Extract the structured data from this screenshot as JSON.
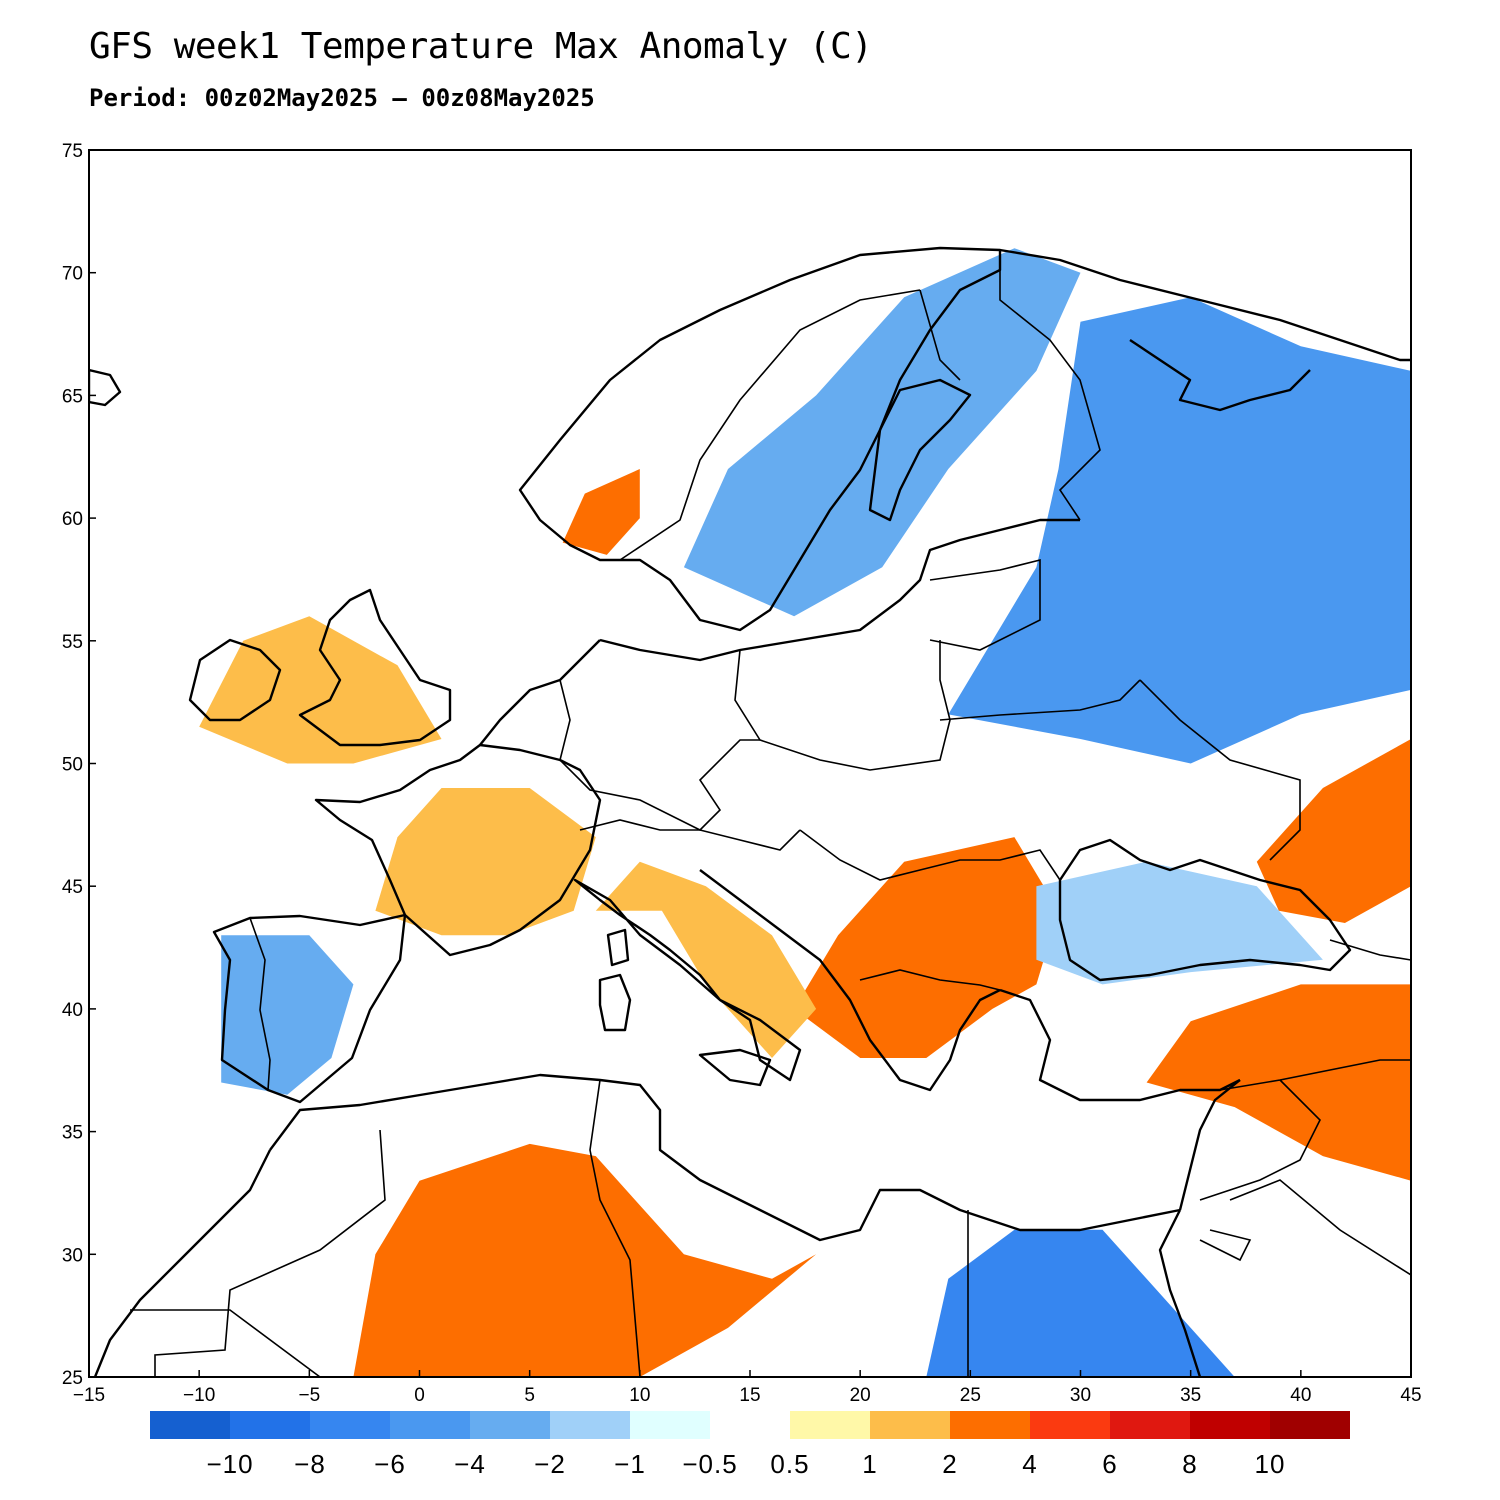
{
  "title": "GFS week1 Temperature Max Anomaly (C)",
  "subtitle": "Period: 00z02May2025 – 00z08May2025",
  "map": {
    "lon_range": [
      -15,
      45
    ],
    "lat_range": [
      25,
      75
    ],
    "lon_ticks": [
      -15,
      -10,
      -5,
      0,
      5,
      10,
      15,
      20,
      25,
      30,
      35,
      40,
      45
    ],
    "lat_ticks": [
      25,
      30,
      35,
      40,
      45,
      50,
      55,
      60,
      65,
      70,
      75
    ],
    "lon_tick_labels": [
      "−15",
      "−10",
      "−5",
      "0",
      "5",
      "10",
      "15",
      "20",
      "25",
      "30",
      "35",
      "40",
      "45"
    ],
    "lat_tick_labels": [
      "25",
      "30",
      "35",
      "40",
      "45",
      "50",
      "55",
      "60",
      "65",
      "70",
      "75"
    ]
  },
  "colorbar": {
    "colors": [
      "#1560d0",
      "#2272e8",
      "#3686f0",
      "#4a98f0",
      "#66acf0",
      "#a0d0f8",
      "#e0ffff",
      "#ffffff",
      "#fff8a8",
      "#fdbd4a",
      "#fd6e00",
      "#fb3a10",
      "#e01810",
      "#c00000",
      "#a00000"
    ],
    "labels": [
      "−10",
      "−8",
      "−6",
      "−4",
      "−2",
      "−1",
      "−0.5",
      "0.5",
      "1",
      "2",
      "4",
      "6",
      "8",
      "10"
    ]
  },
  "regions": [
    {
      "name": "warm-sahara",
      "color": "#fd6e00",
      "points": [
        [
          -3,
          25
        ],
        [
          -2,
          30
        ],
        [
          0,
          33
        ],
        [
          5,
          34.5
        ],
        [
          8,
          34
        ],
        [
          10,
          32
        ],
        [
          12,
          30
        ],
        [
          16,
          29
        ],
        [
          18,
          30
        ],
        [
          14,
          27
        ],
        [
          10,
          25
        ]
      ]
    },
    {
      "name": "cold-egypt",
      "color": "#3686f0",
      "points": [
        [
          23,
          25
        ],
        [
          24,
          29
        ],
        [
          27,
          31
        ],
        [
          31,
          31
        ],
        [
          33,
          29
        ],
        [
          35,
          27
        ],
        [
          37,
          25
        ]
      ]
    },
    {
      "name": "cold-russia",
      "color": "#4a98f0",
      "points": [
        [
          24,
          52
        ],
        [
          28,
          58
        ],
        [
          29,
          62
        ],
        [
          30,
          68
        ],
        [
          35,
          69
        ],
        [
          40,
          67
        ],
        [
          45,
          66
        ],
        [
          45,
          53
        ],
        [
          40,
          52
        ],
        [
          35,
          50
        ],
        [
          30,
          51
        ]
      ]
    },
    {
      "name": "cold-scandinavia",
      "color": "#66acf0",
      "points": [
        [
          12,
          58
        ],
        [
          14,
          62
        ],
        [
          18,
          65
        ],
        [
          22,
          69
        ],
        [
          27,
          71
        ],
        [
          30,
          70
        ],
        [
          28,
          66
        ],
        [
          24,
          62
        ],
        [
          21,
          58
        ],
        [
          17,
          56
        ]
      ]
    },
    {
      "name": "warm-balkans",
      "color": "#fd6e00",
      "points": [
        [
          17,
          40
        ],
        [
          19,
          43
        ],
        [
          22,
          46
        ],
        [
          27,
          47
        ],
        [
          29,
          44
        ],
        [
          28,
          41
        ],
        [
          26,
          40
        ],
        [
          23,
          38
        ],
        [
          20,
          38
        ]
      ]
    },
    {
      "name": "warm-anatolia",
      "color": "#fd6e00",
      "points": [
        [
          33,
          37
        ],
        [
          35,
          39.5
        ],
        [
          40,
          41
        ],
        [
          45,
          41
        ],
        [
          45,
          33
        ],
        [
          41,
          34
        ],
        [
          37,
          36
        ]
      ]
    },
    {
      "name": "warm-caspian",
      "color": "#fd6e00",
      "points": [
        [
          38,
          46
        ],
        [
          41,
          49
        ],
        [
          45,
          51
        ],
        [
          45,
          45
        ],
        [
          42,
          43.5
        ],
        [
          39,
          44
        ]
      ]
    },
    {
      "name": "warm-france",
      "color": "#fdbd4a",
      "points": [
        [
          -2,
          44
        ],
        [
          -1,
          47
        ],
        [
          1,
          49
        ],
        [
          5,
          49
        ],
        [
          8,
          47
        ],
        [
          7,
          44
        ],
        [
          4,
          43
        ],
        [
          1,
          43
        ]
      ]
    },
    {
      "name": "warm-italy",
      "color": "#fdbd4a",
      "points": [
        [
          8,
          44
        ],
        [
          11,
          44
        ],
        [
          13,
          41
        ],
        [
          16,
          38
        ],
        [
          18,
          40
        ],
        [
          16,
          43
        ],
        [
          13,
          45
        ],
        [
          10,
          46
        ]
      ]
    },
    {
      "name": "warm-uk",
      "color": "#fdbd4a",
      "points": [
        [
          -10,
          51.5
        ],
        [
          -8,
          55
        ],
        [
          -5,
          56
        ],
        [
          -1,
          54
        ],
        [
          1,
          51
        ],
        [
          -3,
          50
        ],
        [
          -6,
          50
        ]
      ]
    },
    {
      "name": "warm-norway",
      "color": "#fd6e00",
      "points": [
        [
          6.5,
          59
        ],
        [
          7.5,
          61
        ],
        [
          10,
          62
        ],
        [
          10,
          60
        ],
        [
          8.5,
          58.5
        ]
      ]
    },
    {
      "name": "cold-iberia",
      "color": "#66acf0",
      "points": [
        [
          -9,
          37
        ],
        [
          -9,
          43
        ],
        [
          -5,
          43
        ],
        [
          -3,
          41
        ],
        [
          -4,
          38
        ],
        [
          -6,
          36.5
        ]
      ]
    },
    {
      "name": "cold-black-sea",
      "color": "#a0d0f8",
      "points": [
        [
          28,
          42
        ],
        [
          28,
          45
        ],
        [
          33,
          46
        ],
        [
          38,
          45
        ],
        [
          41,
          42
        ],
        [
          35,
          41.5
        ],
        [
          31,
          41
        ]
      ]
    }
  ]
}
